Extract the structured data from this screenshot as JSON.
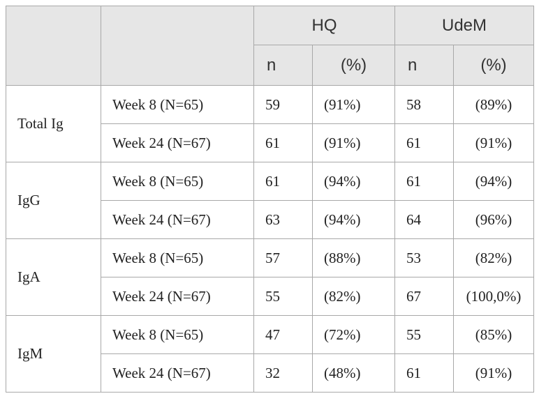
{
  "header": {
    "groups": [
      "HQ",
      "UdeM"
    ],
    "sub": [
      "n",
      "(%)",
      "n",
      "(%)"
    ]
  },
  "rows": [
    {
      "marker": "Total Ig",
      "entries": [
        {
          "time": "Week 8 (N=65)",
          "hq_n": "59",
          "hq_pct": "(91%)",
          "udem_n": "58",
          "udem_pct": "(89%)"
        },
        {
          "time": "Week 24 (N=67)",
          "hq_n": "61",
          "hq_pct": "(91%)",
          "udem_n": "61",
          "udem_pct": "(91%)"
        }
      ]
    },
    {
      "marker": "IgG",
      "entries": [
        {
          "time": "Week 8 (N=65)",
          "hq_n": "61",
          "hq_pct": "(94%)",
          "udem_n": "61",
          "udem_pct": "(94%)"
        },
        {
          "time": "Week 24 (N=67)",
          "hq_n": "63",
          "hq_pct": "(94%)",
          "udem_n": "64",
          "udem_pct": "(96%)"
        }
      ]
    },
    {
      "marker": "IgA",
      "entries": [
        {
          "time": "Week 8 (N=65)",
          "hq_n": "57",
          "hq_pct": "(88%)",
          "udem_n": "53",
          "udem_pct": "(82%)"
        },
        {
          "time": "Week 24 (N=67)",
          "hq_n": "55",
          "hq_pct": "(82%)",
          "udem_n": "67",
          "udem_pct": "(100,0%)"
        }
      ]
    },
    {
      "marker": "IgM",
      "entries": [
        {
          "time": "Week 8 (N=65)",
          "hq_n": "47",
          "hq_pct": "(72%)",
          "udem_n": "55",
          "udem_pct": "(85%)"
        },
        {
          "time": "Week 24 (N=67)",
          "hq_n": "32",
          "hq_pct": "(48%)",
          "udem_n": "61",
          "udem_pct": "(91%)"
        }
      ]
    }
  ]
}
